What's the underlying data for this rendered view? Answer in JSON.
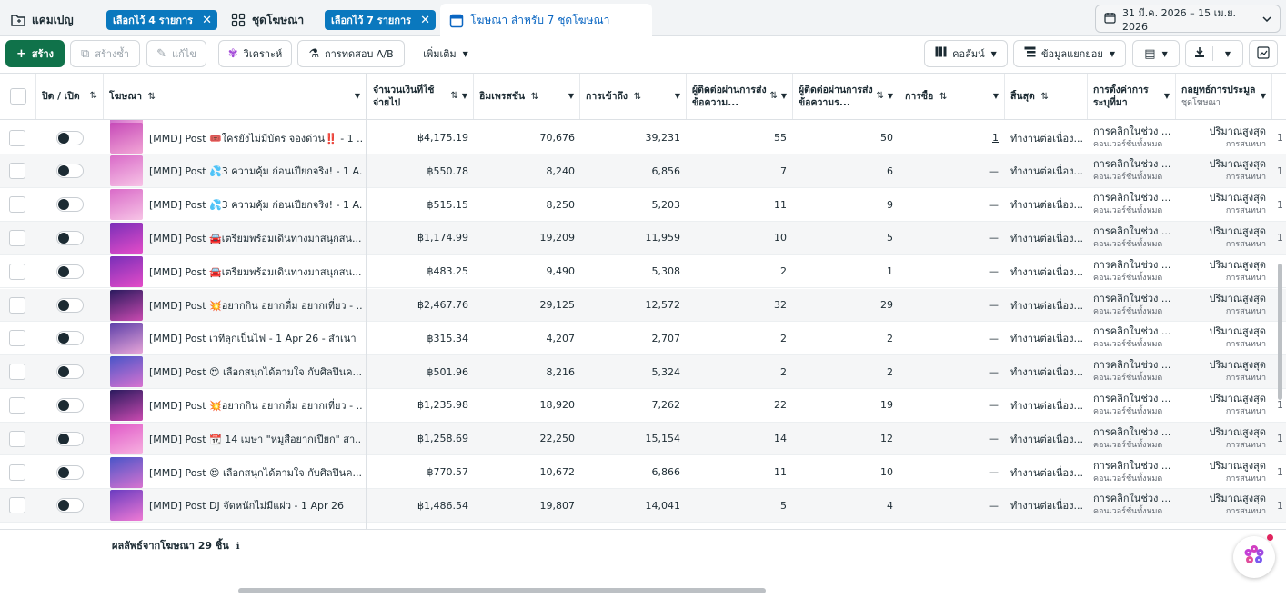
{
  "tabs": {
    "campaigns": "แคมเปญ",
    "campaigns_chip": "เลือกไว้ 4 รายการ",
    "adsets": "ชุดโฆษณา",
    "adsets_chip": "เลือกไว้ 7 รายการ",
    "ads": "โฆษณา สำหรับ 7 ชุดโฆษณา"
  },
  "date_range": "31 มี.ค. 2026 – 15 เม.ย. 2026",
  "toolbar": {
    "create": "สร้าง",
    "duplicate": "สร้างซ้ำ",
    "edit": "แก้ไข",
    "analyze": "วิเคราะห์",
    "ab_test": "การทดสอบ A/B",
    "more": "เพิ่มเติม",
    "columns": "คอลัมน์",
    "breakdown": "ข้อมูลแยกย่อย"
  },
  "columns": {
    "toggle": "ปิด / เปิด",
    "ad": "โฆษณา",
    "spend": "จำนวนเงินที่ใช้จ่ายไป",
    "impressions": "อิมเพรสชัน",
    "reach": "การเข้าถึง",
    "conv1": "ผู้ติดต่อผ่านการส่งข้อความ...",
    "conv2": "ผู้ติดต่อผ่านการส่งข้อความร...",
    "purchases": "การซื้อ",
    "ends": "สิ้นสุด",
    "attribution": "การตั้งค่าการระบุที่มา",
    "bid": "กลยุทธ์การประมูล",
    "bid_sub": "ชุดโฆษณา"
  },
  "rows": [
    {
      "ad": "[MMD] Post 🎟️ใครยังไม่มีบัตร จองด่วน‼️ - 1 ...",
      "spend": "฿4,175.19",
      "impr": "70,676",
      "reach": "39,231",
      "c1": "55",
      "c2": "50",
      "purch": "1",
      "ends": "ทำงานต่อเนื่อง...",
      "attr": "การคลิกในช่วง ...",
      "attr_sub": "คอนเวอร์ชั่นทั้งหมด",
      "bid": "ปริมาณสูงสุด",
      "bid_sub": "การสนทนา",
      "thumb": [
        "#c64ab8",
        "#f2a6d6"
      ]
    },
    {
      "ad": "[MMD] Post 💦3 ความคุ้ม ก่อนเปียกจริง! - 1 A...",
      "spend": "฿550.78",
      "impr": "8,240",
      "reach": "6,856",
      "c1": "7",
      "c2": "6",
      "purch": "—",
      "ends": "ทำงานต่อเนื่อง...",
      "attr": "การคลิกในช่วง ...",
      "attr_sub": "คอนเวอร์ชั่นทั้งหมด",
      "bid": "ปริมาณสูงสุด",
      "bid_sub": "การสนทนา",
      "thumb": [
        "#d96bc8",
        "#f7c4e6"
      ]
    },
    {
      "ad": "[MMD] Post 💦3 ความคุ้ม ก่อนเปียกจริง! - 1 A...",
      "spend": "฿515.15",
      "impr": "8,250",
      "reach": "5,203",
      "c1": "11",
      "c2": "9",
      "purch": "—",
      "ends": "ทำงานต่อเนื่อง...",
      "attr": "การคลิกในช่วง ...",
      "attr_sub": "คอนเวอร์ชั่นทั้งหมด",
      "bid": "ปริมาณสูงสุด",
      "bid_sub": "การสนทนา",
      "thumb": [
        "#d96bc8",
        "#f7c4e6"
      ]
    },
    {
      "ad": "[MMD] Post 🚘เตรียมพร้อมเดินทางมาสนุกสน...",
      "spend": "฿1,174.99",
      "impr": "19,209",
      "reach": "11,959",
      "c1": "10",
      "c2": "5",
      "purch": "—",
      "ends": "ทำงานต่อเนื่อง...",
      "attr": "การคลิกในช่วง ...",
      "attr_sub": "คอนเวอร์ชั่นทั้งหมด",
      "bid": "ปริมาณสูงสุด",
      "bid_sub": "การสนทนา",
      "thumb": [
        "#7a2fb8",
        "#e44cc8"
      ]
    },
    {
      "ad": "[MMD] Post 🚘เตรียมพร้อมเดินทางมาสนุกสน...",
      "spend": "฿483.25",
      "impr": "9,490",
      "reach": "5,308",
      "c1": "2",
      "c2": "1",
      "purch": "—",
      "ends": "ทำงานต่อเนื่อง...",
      "attr": "การคลิกในช่วง ...",
      "attr_sub": "คอนเวอร์ชั่นทั้งหมด",
      "bid": "ปริมาณสูงสุด",
      "bid_sub": "การสนทนา",
      "thumb": [
        "#7a2fb8",
        "#e44cc8"
      ]
    },
    {
      "ad": "[MMD] Post 💥อยากกิน อยากดื่ม อยากเที่ยว - ...",
      "spend": "฿2,467.76",
      "impr": "29,125",
      "reach": "12,572",
      "c1": "32",
      "c2": "29",
      "purch": "—",
      "ends": "ทำงานต่อเนื่อง...",
      "attr": "การคลิกในช่วง ...",
      "attr_sub": "คอนเวอร์ชั่นทั้งหมด",
      "bid": "ปริมาณสูงสุด",
      "bid_sub": "การสนทนา",
      "thumb": [
        "#2b1a5e",
        "#c94ab0"
      ]
    },
    {
      "ad": "[MMD] Post เวทีลุกเป็นไฟ - 1 Apr 26 - สำเนา",
      "spend": "฿315.34",
      "impr": "4,207",
      "reach": "2,707",
      "c1": "2",
      "c2": "2",
      "purch": "—",
      "ends": "ทำงานต่อเนื่อง...",
      "attr": "การคลิกในช่วง ...",
      "attr_sub": "คอนเวอร์ชั่นทั้งหมด",
      "bid": "ปริมาณสูงสุด",
      "bid_sub": "การสนทนา",
      "thumb": [
        "#5c3fa8",
        "#e7a5d8"
      ]
    },
    {
      "ad": "[MMD] Post 😍 เลือกสนุกได้ตามใจ กับศิลปินค...",
      "spend": "฿501.96",
      "impr": "8,216",
      "reach": "5,324",
      "c1": "2",
      "c2": "2",
      "purch": "—",
      "ends": "ทำงานต่อเนื่อง...",
      "attr": "การคลิกในช่วง ...",
      "attr_sub": "คอนเวอร์ชั่นทั้งหมด",
      "bid": "ปริมาณสูงสุด",
      "bid_sub": "การสนทนา",
      "thumb": [
        "#4a55c8",
        "#d873d0"
      ]
    },
    {
      "ad": "[MMD] Post 💥อยากกิน อยากดื่ม อยากเที่ยว - ...",
      "spend": "฿1,235.98",
      "impr": "18,920",
      "reach": "7,262",
      "c1": "22",
      "c2": "19",
      "purch": "—",
      "ends": "ทำงานต่อเนื่อง...",
      "attr": "การคลิกในช่วง ...",
      "attr_sub": "คอนเวอร์ชั่นทั้งหมด",
      "bid": "ปริมาณสูงสุด",
      "bid_sub": "การสนทนา",
      "thumb": [
        "#2b1a5e",
        "#c94ab0"
      ]
    },
    {
      "ad": "[MMD] Post 📆 14 เมษา \"หมูสือยากเปียก\" สา...",
      "spend": "฿1,258.69",
      "impr": "22,250",
      "reach": "15,154",
      "c1": "14",
      "c2": "12",
      "purch": "—",
      "ends": "ทำงานต่อเนื่อง...",
      "attr": "การคลิกในช่วง ...",
      "attr_sub": "คอนเวอร์ชั่นทั้งหมด",
      "bid": "ปริมาณสูงสุด",
      "bid_sub": "การสนทนา",
      "thumb": [
        "#e05ac8",
        "#f7b2e0"
      ]
    },
    {
      "ad": "[MMD] Post 😍 เลือกสนุกได้ตามใจ กับศิลปินค...",
      "spend": "฿770.57",
      "impr": "10,672",
      "reach": "6,866",
      "c1": "11",
      "c2": "10",
      "purch": "—",
      "ends": "ทำงานต่อเนื่อง...",
      "attr": "การคลิกในช่วง ...",
      "attr_sub": "คอนเวอร์ชั่นทั้งหมด",
      "bid": "ปริมาณสูงสุด",
      "bid_sub": "การสนทนา",
      "thumb": [
        "#4a55c8",
        "#d873d0"
      ]
    },
    {
      "ad": "[MMD] Post DJ จัดหนักไม่มีแผ่ว - 1 Apr 26",
      "spend": "฿1,486.54",
      "impr": "19,807",
      "reach": "14,041",
      "c1": "5",
      "c2": "4",
      "purch": "—",
      "ends": "ทำงานต่อเนื่อง...",
      "attr": "การคลิกในช่วง ...",
      "attr_sub": "คอนเวอร์ชั่นทั้งหมด",
      "bid": "ปริมาณสูงสุด",
      "bid_sub": "การสนทนา",
      "thumb": [
        "#6a3cc0",
        "#ef7ad4"
      ]
    }
  ],
  "footer": {
    "result_text": "ผลลัพธ์จากโฆษณา 29 ชิ้น"
  }
}
